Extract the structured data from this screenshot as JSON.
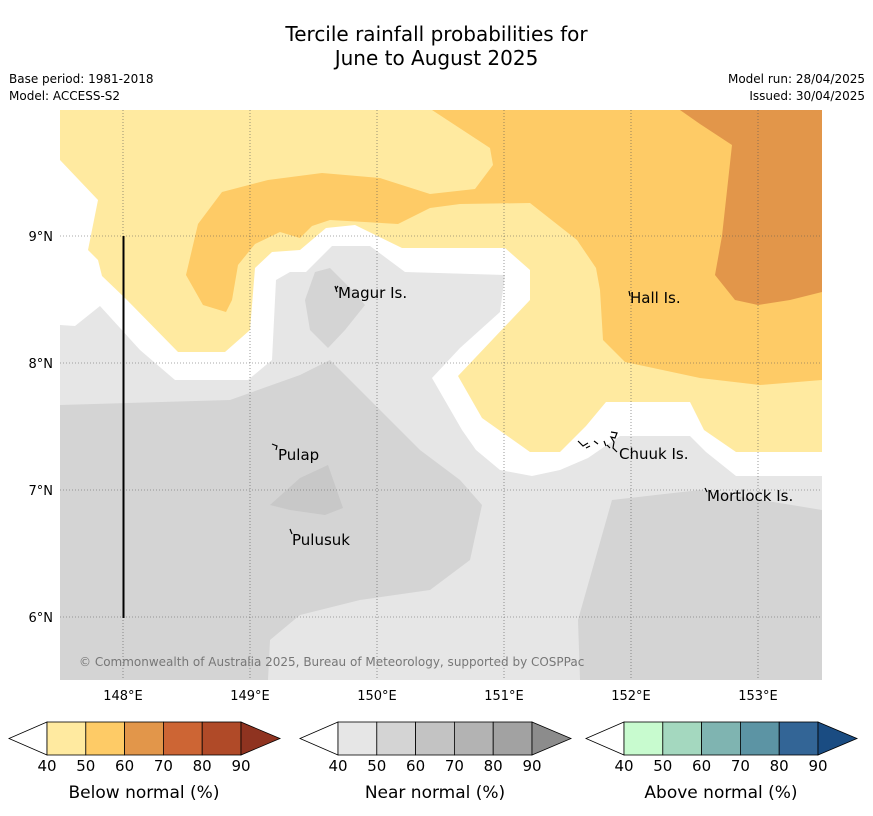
{
  "title_line1": "Tercile rainfall probabilities for",
  "title_line2": "June to August 2025",
  "meta": {
    "base_period": "Base period: 1981-2018",
    "model": "Model: ACCESS-S2",
    "model_run": "Model run: 28/04/2025",
    "issued": "Issued: 30/04/2025"
  },
  "map": {
    "lon_ticks": [
      "148°E",
      "149°E",
      "150°E",
      "151°E",
      "152°E",
      "153°E"
    ],
    "lat_ticks": [
      "9°N",
      "8°N",
      "7°N",
      "6°N"
    ],
    "places": [
      "Magur Is.",
      "Hall Is.",
      "Pulap",
      "Chuuk Is.",
      "Mortlock Is.",
      "Pulusuk"
    ],
    "copyright": "© Commonwealth of Australia 2025, Bureau of Meteorology, supported by COSPPac"
  },
  "colorbars": [
    {
      "label": "Below normal (%)",
      "ticks": [
        "40",
        "50",
        "60",
        "70",
        "80",
        "90"
      ],
      "colors": [
        "#ffeaa0",
        "#fecb66",
        "#e2964a",
        "#cd6534",
        "#b04a28",
        "#8f3320"
      ]
    },
    {
      "label": "Near normal (%)",
      "ticks": [
        "40",
        "50",
        "60",
        "70",
        "80",
        "90"
      ],
      "colors": [
        "#e6e6e6",
        "#d4d4d4",
        "#c3c3c3",
        "#b3b3b3",
        "#a2a2a2",
        "#8c8c8c"
      ]
    },
    {
      "label": "Above normal (%)",
      "ticks": [
        "40",
        "50",
        "60",
        "70",
        "80",
        "90"
      ],
      "colors": [
        "#c8fbcf",
        "#a4d8bf",
        "#7fb4b1",
        "#5c94a4",
        "#336596",
        "#1a4c82"
      ]
    }
  ]
}
